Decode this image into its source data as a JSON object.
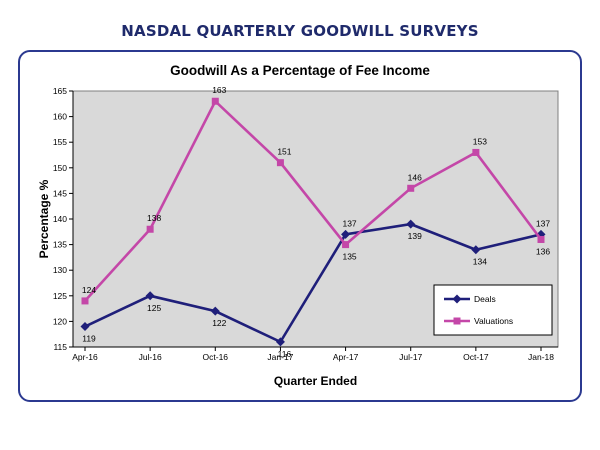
{
  "header": {
    "title": "NASDAL QUARTERLY GOODWILL SURVEYS"
  },
  "chart_data": {
    "type": "line",
    "title": "Goodwill As a Percentage of Fee Income",
    "xlabel": "Quarter Ended",
    "ylabel": "Percentage %",
    "categories": [
      "Apr-16",
      "Jul-16",
      "Oct-16",
      "Jan-17",
      "Apr-17",
      "Jul-17",
      "Oct-17",
      "Jan-18"
    ],
    "ylim": [
      115,
      165
    ],
    "yticks": [
      115,
      120,
      125,
      130,
      135,
      140,
      145,
      150,
      155,
      160,
      165
    ],
    "grid": false,
    "plot_background": "#d9d9d9",
    "legend_position": "bottom-right",
    "series": [
      {
        "name": "Deals",
        "color": "#1f1f7a",
        "marker": "diamond",
        "values": [
          119,
          125,
          122,
          116,
          137,
          139,
          134,
          137
        ],
        "labels": [
          "119",
          "125",
          "122",
          "116",
          "137",
          "139",
          "134",
          "137"
        ]
      },
      {
        "name": "Valuations",
        "color": "#c447a8",
        "marker": "square",
        "values": [
          124,
          138,
          163,
          151,
          135,
          146,
          153,
          136
        ],
        "labels": [
          "124",
          "138",
          "163",
          "151",
          "135",
          "146",
          "153",
          "136"
        ]
      }
    ]
  }
}
